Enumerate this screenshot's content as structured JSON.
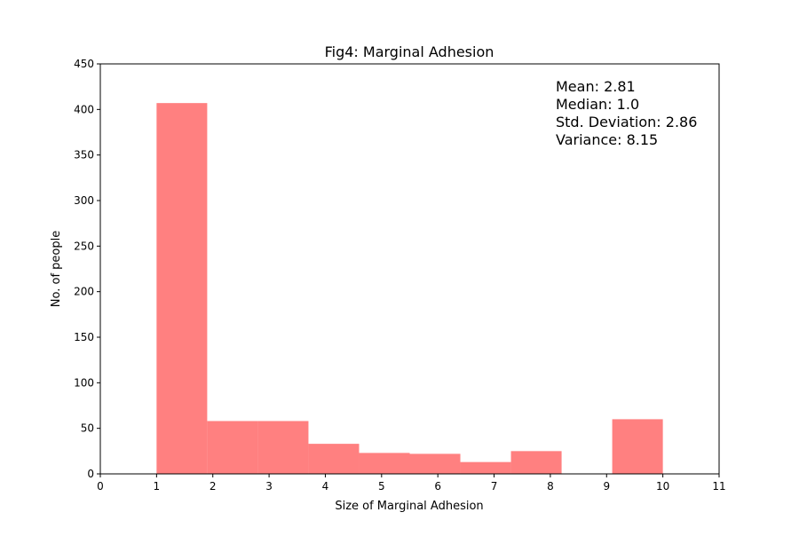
{
  "chart_data": {
    "type": "bar",
    "title": "Fig4: Marginal Adhesion",
    "xlabel": "Size of Marginal Adhesion",
    "ylabel": "No. of people",
    "xlim": [
      0,
      11
    ],
    "ylim": [
      0,
      450
    ],
    "x_ticks": [
      0,
      1,
      2,
      3,
      4,
      5,
      6,
      7,
      8,
      9,
      10,
      11
    ],
    "y_ticks": [
      0,
      50,
      100,
      150,
      200,
      250,
      300,
      350,
      400,
      450
    ],
    "bins": [
      {
        "start": 1.0,
        "end": 1.9,
        "value": 407
      },
      {
        "start": 1.9,
        "end": 2.8,
        "value": 58
      },
      {
        "start": 2.8,
        "end": 3.7,
        "value": 58
      },
      {
        "start": 3.7,
        "end": 4.6,
        "value": 33
      },
      {
        "start": 4.6,
        "end": 5.5,
        "value": 23
      },
      {
        "start": 5.5,
        "end": 6.4,
        "value": 22
      },
      {
        "start": 6.4,
        "end": 7.3,
        "value": 13
      },
      {
        "start": 7.3,
        "end": 8.2,
        "value": 25
      },
      {
        "start": 8.2,
        "end": 9.1,
        "value": 0
      },
      {
        "start": 9.1,
        "end": 10.0,
        "value": 60
      }
    ],
    "bar_color": "#ff8080",
    "grid": false,
    "annotation": [
      "Mean: 2.81",
      "Median: 1.0",
      "Std. Deviation: 2.86",
      "Variance: 8.15"
    ]
  }
}
